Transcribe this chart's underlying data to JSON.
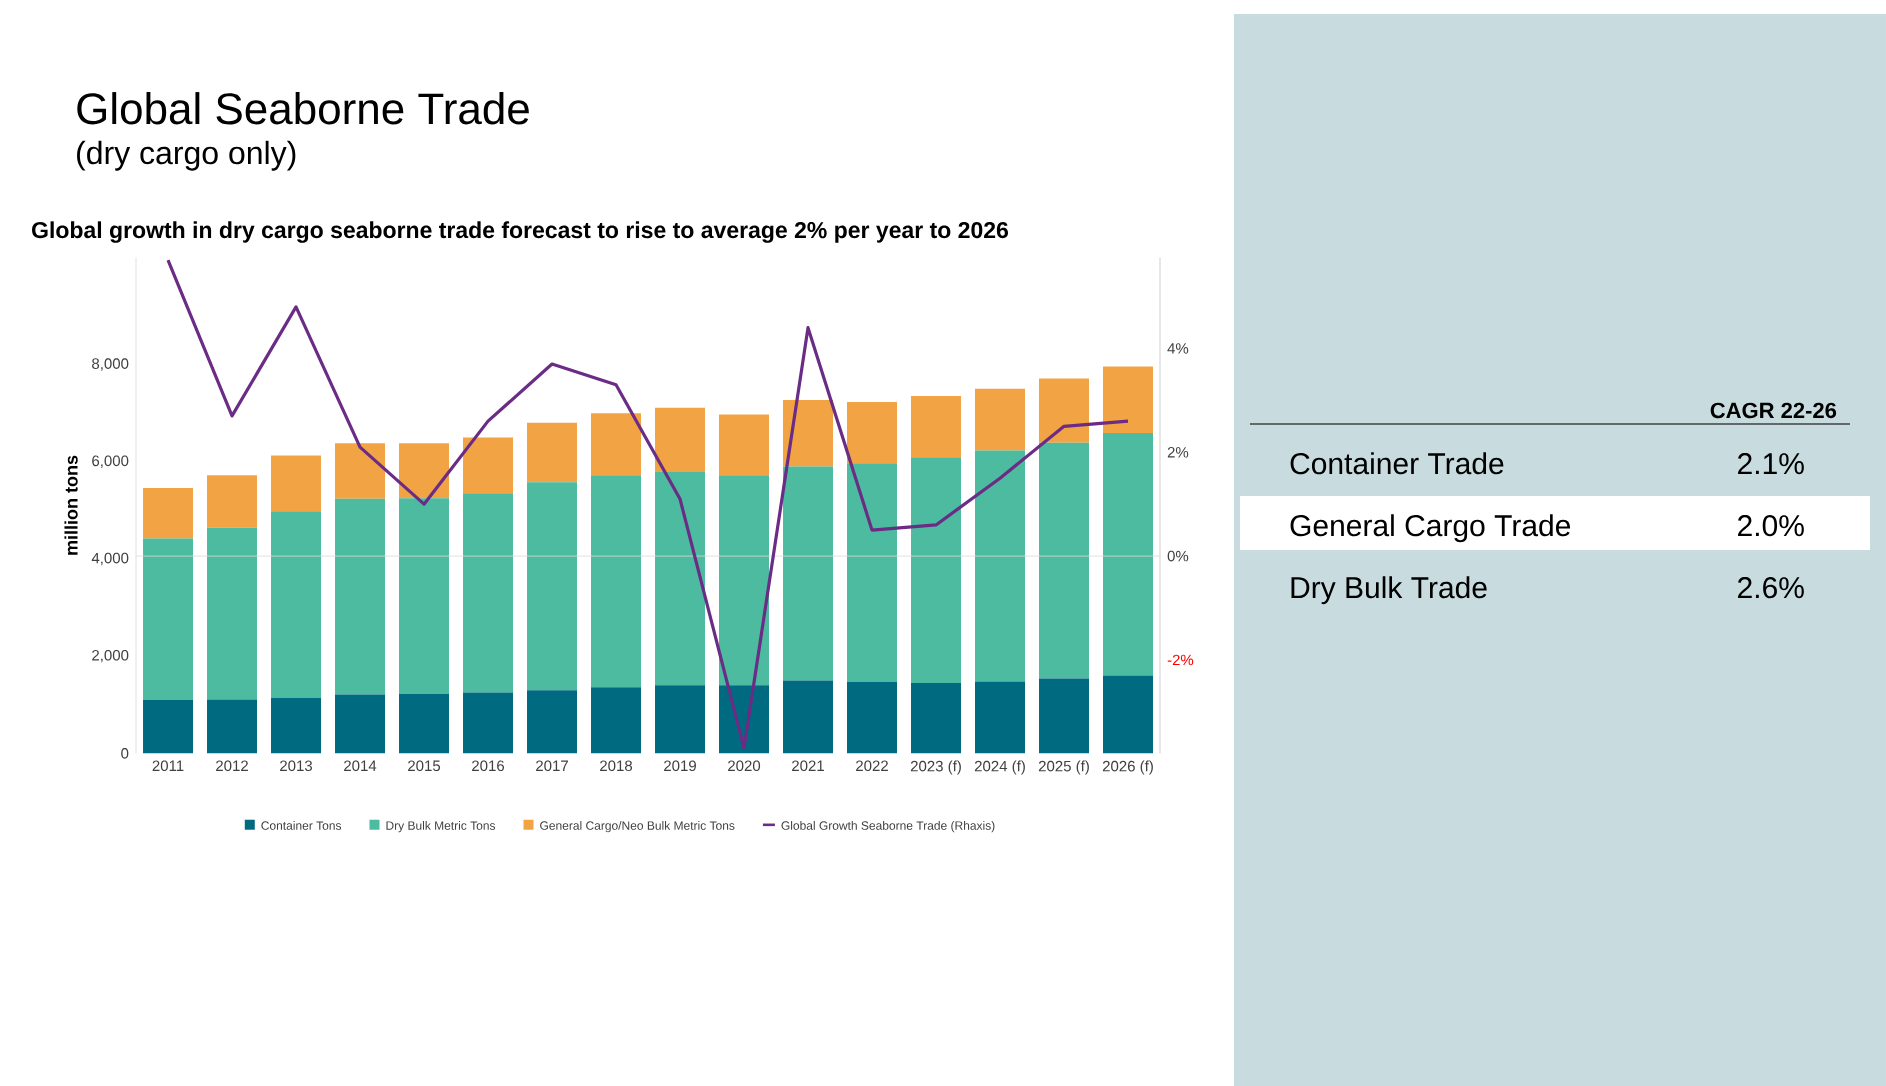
{
  "chart_data": [
    {
      "type": "bar",
      "title": "Global Seaborne Trade",
      "subtitle": "(dry cargo only)",
      "annotations": [
        "Global growth in dry cargo seaborne trade forecast to rise to average 2% per year to 2026"
      ],
      "ylabel": "million tons",
      "categories": [
        "2011",
        "2012",
        "2013",
        "2014",
        "2015",
        "2016",
        "2017",
        "2018",
        "2019",
        "2020",
        "2021",
        "2022",
        "2023 (f)",
        "2024 (f)",
        "2025 (f)",
        "2026 (f)"
      ],
      "stacked": true,
      "legend": "bottom",
      "ylim": [
        0,
        10200
      ],
      "yticks": [
        {
          "value": 0,
          "label": "0"
        },
        {
          "value": 2000,
          "label": "2,000"
        },
        {
          "value": 4000,
          "label": "4,000"
        },
        {
          "value": 6000,
          "label": "6,000"
        },
        {
          "value": 8000,
          "label": "8,000"
        }
      ],
      "y2lim": [
        -3.8,
        5.75
      ],
      "y2ticks": [
        {
          "value": -2,
          "label": "-2%"
        },
        {
          "value": 0,
          "label": "0%"
        },
        {
          "value": 2,
          "label": "2%"
        },
        {
          "value": 4,
          "label": "4%"
        }
      ],
      "ref_lines": [
        {
          "axis": "y2",
          "value": 0,
          "color": "#d9d9d9"
        }
      ],
      "series": [
        {
          "name": "Container Tons",
          "color": "#006a80",
          "values": [
            1100,
            1110,
            1140,
            1210,
            1220,
            1250,
            1300,
            1360,
            1400,
            1400,
            1500,
            1470,
            1450,
            1480,
            1540,
            1600
          ]
        },
        {
          "name": "Dry Bulk Metric Tons",
          "color": "#4dbb9f",
          "values": [
            3320,
            3530,
            3840,
            4030,
            4030,
            4100,
            4280,
            4360,
            4390,
            4320,
            4400,
            4500,
            4640,
            4750,
            4850,
            4990
          ]
        },
        {
          "name": "General Cargo/Neo Bulk Metric Tons",
          "color": "#f2a444",
          "values": [
            1040,
            1080,
            1150,
            1140,
            1130,
            1150,
            1220,
            1280,
            1320,
            1250,
            1370,
            1260,
            1260,
            1270,
            1320,
            1370
          ]
        },
        {
          "name": "Global Growth Seaborne Trade (Rhaxis)",
          "type": "line",
          "axis": "y2",
          "color": "#6a2c85",
          "values": [
            5.7,
            2.7,
            4.8,
            2.1,
            1.0,
            2.6,
            3.7,
            3.3,
            1.1,
            -3.7,
            4.4,
            0.5,
            0.6,
            1.5,
            2.5,
            2.6
          ]
        }
      ]
    },
    {
      "type": "other",
      "title": "CAGR 22-26",
      "categories": [
        "Container Trade",
        "General Cargo Trade",
        "Dry Bulk Trade"
      ],
      "value_labels": [
        "2.1%",
        "2.0%",
        "2.6%"
      ]
    }
  ]
}
